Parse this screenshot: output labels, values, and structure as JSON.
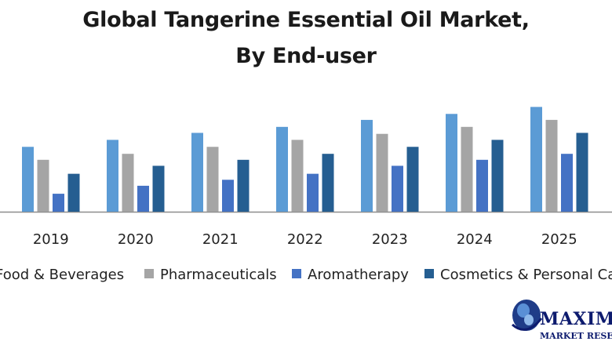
{
  "chart_data": {
    "type": "bar",
    "title": [
      "Global Tangerine Essential Oil Market,",
      "By End-user"
    ],
    "categories": [
      "2019",
      "2020",
      "2021",
      "2022",
      "2023",
      "2024",
      "2025"
    ],
    "series": [
      {
        "name": "Food & Beverages",
        "color": "#5b9bd5",
        "values": [
          6.5,
          7.2,
          7.9,
          8.5,
          9.2,
          9.8,
          10.5
        ]
      },
      {
        "name": "Pharmaceuticals",
        "color": "#a5a5a5",
        "values": [
          5.2,
          5.8,
          6.5,
          7.2,
          7.8,
          8.5,
          9.2
        ]
      },
      {
        "name": "Aromatherapy",
        "color": "#4472c4",
        "values": [
          1.8,
          2.6,
          3.2,
          3.8,
          4.6,
          5.2,
          5.8
        ]
      },
      {
        "name": "Cosmetics & Personal Care",
        "color": "#255e91",
        "values": [
          3.8,
          4.6,
          5.2,
          5.8,
          6.5,
          7.2,
          7.9
        ]
      }
    ],
    "ylim": [
      0,
      11
    ],
    "y_axis_visible": false,
    "grid": false,
    "legend_position": "bottom"
  },
  "legend_labels": [
    "Food & Beverages",
    "Pharmaceuticals",
    "Aromatherapy",
    "Cosmetics & Personal Care"
  ],
  "logo": {
    "name_text": "MAXIMIZE",
    "sub_text": "MARKET RESEARCH"
  }
}
